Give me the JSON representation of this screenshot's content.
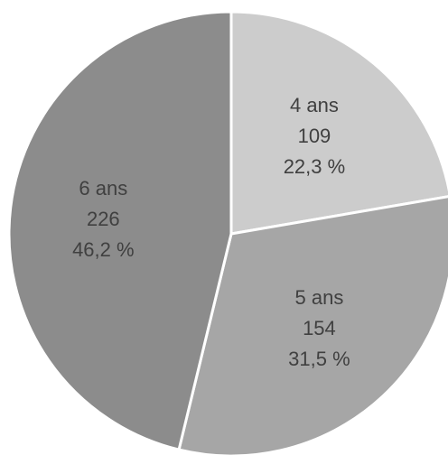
{
  "chart_data": {
    "type": "pie",
    "title": "",
    "slices": [
      {
        "label": "4 ans",
        "count": "109",
        "percent_label": "22,3 %",
        "value": 109,
        "color": "#cccccc"
      },
      {
        "label": "5 ans",
        "count": "154",
        "percent_label": "31,5 %",
        "value": 154,
        "color": "#a6a6a6"
      },
      {
        "label": "6 ans",
        "count": "226",
        "percent_label": "46,2 %",
        "value": 226,
        "color": "#8c8c8c"
      }
    ]
  }
}
